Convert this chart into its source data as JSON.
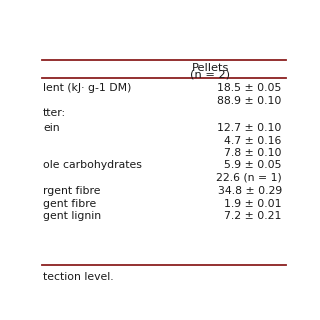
{
  "header_col1": "Pellets",
  "header_col2": "(n = 2)",
  "rows": [
    {
      "label": "lent (kJ· g-1 DM)",
      "value": "18.5 ± 0.05"
    },
    {
      "label": "",
      "value": "88.9 ± 0.10"
    },
    {
      "label": "tter:",
      "value": "",
      "spacer_after": true
    },
    {
      "label": "ein",
      "value": "12.7 ± 0.10"
    },
    {
      "label": "",
      "value": "4.7 ± 0.16"
    },
    {
      "label": "",
      "value": "7.8 ± 0.10"
    },
    {
      "label": "ole carbohydrates",
      "value": "5.9 ± 0.05"
    },
    {
      "label": "",
      "value": "22.6 (n = 1)"
    },
    {
      "label": "rgent fibre",
      "value": "34.8 ± 0.29"
    },
    {
      "label": "gent fibre",
      "value": "1.9 ± 0.01"
    },
    {
      "label": "gent lignin",
      "value": "7.2 ± 0.21"
    }
  ],
  "footer": "tection level.",
  "line_color": "#8B2020",
  "bg_color": "#FFFFFF",
  "text_color": "#1a1a1a",
  "font_size": 7.8,
  "header_font_size": 8.2,
  "footer_font_size": 7.8
}
